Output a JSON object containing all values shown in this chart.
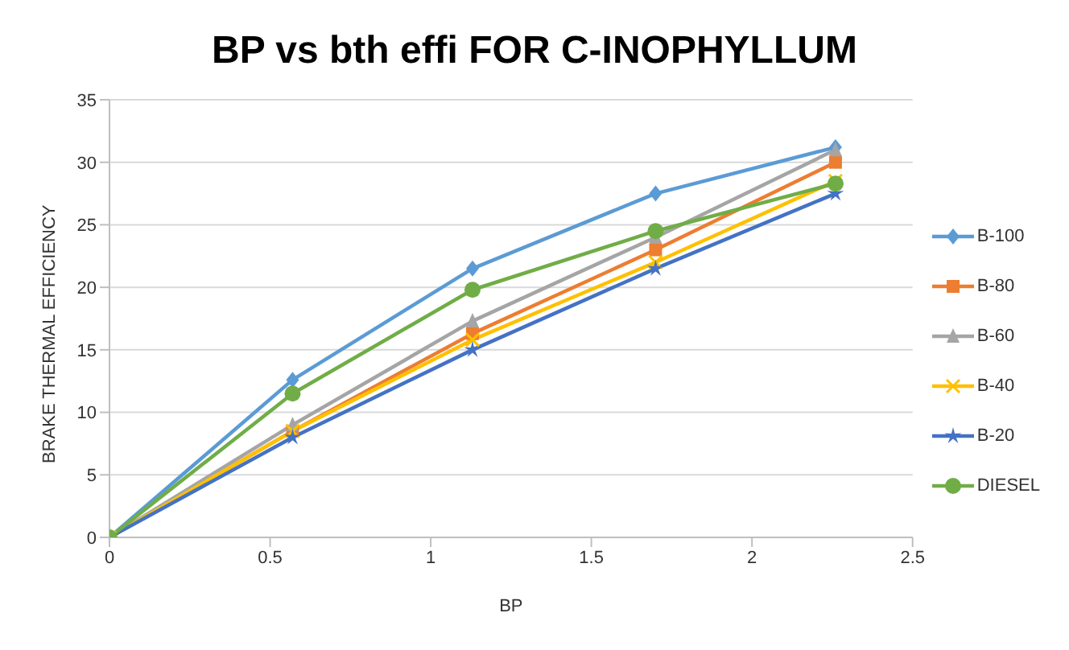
{
  "chart_data": {
    "type": "line",
    "title": "BP vs bth effi FOR C-INOPHYLLUM",
    "xlabel": "BP",
    "ylabel": "BRAKE THERMAL  EFFICIENCY",
    "x": [
      0,
      0.57,
      1.13,
      1.7,
      2.26
    ],
    "series": [
      {
        "name": "B-100",
        "color": "#5b9bd5",
        "marker": "diamond",
        "values": [
          0,
          12.6,
          21.5,
          27.5,
          31.2
        ]
      },
      {
        "name": "B-80",
        "color": "#ed7d31",
        "marker": "square",
        "values": [
          0,
          8.5,
          16.3,
          23,
          30
        ]
      },
      {
        "name": "B-60",
        "color": "#a5a5a5",
        "marker": "triangle",
        "values": [
          0,
          9,
          17.3,
          24,
          31
        ]
      },
      {
        "name": "B-40",
        "color": "#ffc000",
        "marker": "cross",
        "values": [
          0,
          8.5,
          15.8,
          22,
          28.5
        ]
      },
      {
        "name": "B-20",
        "color": "#4472c4",
        "marker": "star",
        "values": [
          0,
          8,
          15,
          21.5,
          27.5
        ]
      },
      {
        "name": "DIESEL",
        "color": "#70ad47",
        "marker": "circle",
        "values": [
          0,
          11.5,
          19.8,
          24.5,
          28.3
        ]
      }
    ],
    "xlim": [
      0,
      2.5
    ],
    "xticks": [
      0,
      0.5,
      1,
      1.5,
      2,
      2.5
    ],
    "ylim": [
      0,
      35
    ],
    "yticks": [
      0,
      5,
      10,
      15,
      20,
      25,
      30,
      35
    ],
    "grid": "y",
    "legend": "right",
    "line_style": "solid"
  }
}
